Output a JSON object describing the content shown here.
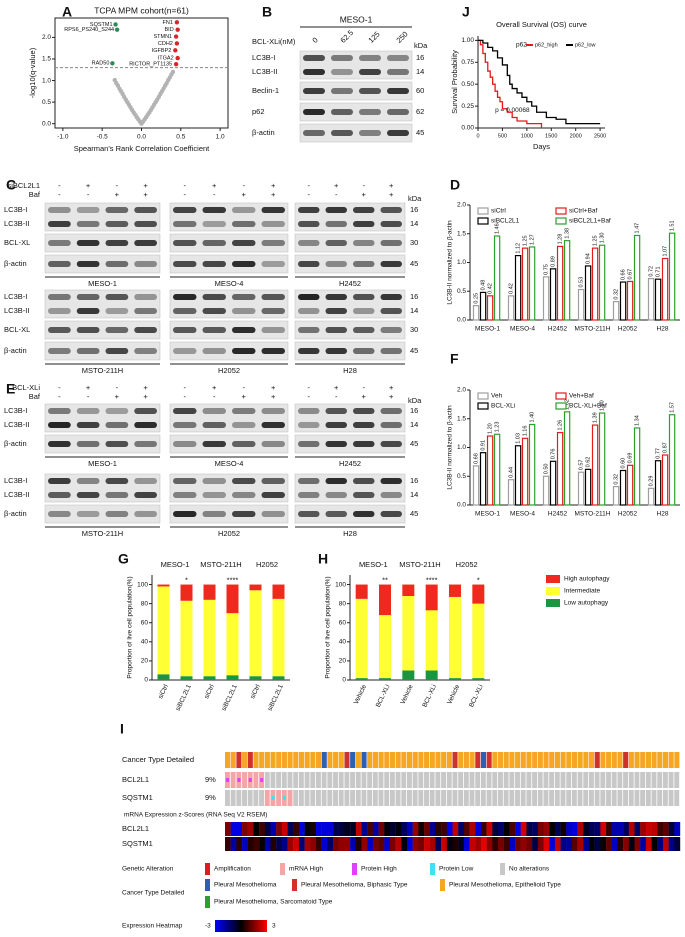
{
  "panel_letters": [
    "A",
    "B",
    "C",
    "D",
    "E",
    "F",
    "G",
    "H",
    "I",
    "J"
  ],
  "chart_data": [
    {
      "type": "scatter",
      "title": "TCPA MPM cohort(n=61)",
      "x_label": "Spearman's Rank Correlation Coefficient",
      "y_label": "-log10(q-value)",
      "xlim": [
        -1.1,
        1.1
      ],
      "ylim": [
        -0.1,
        2.45
      ],
      "xticks": [
        {
          "value": -1,
          "label": "-1.0"
        },
        {
          "value": -0.5,
          "label": "-0.5"
        },
        {
          "value": 0,
          "label": "0.0"
        },
        {
          "value": 0.5,
          "label": "0.5"
        },
        {
          "value": 1,
          "label": "1.0"
        }
      ],
      "yticks": [
        {
          "value": 0,
          "label": "0.0"
        },
        {
          "value": 0.5,
          "label": "0.5"
        },
        {
          "value": 1,
          "label": "1.0"
        },
        {
          "value": 1.5,
          "label": "1.5"
        },
        {
          "value": 2,
          "label": "2.0"
        }
      ],
      "threshold": 1.3,
      "series": [
        {
          "color": "#b3b3b3",
          "x": [
            -0.34,
            -0.32,
            -0.3,
            -0.28,
            -0.26,
            -0.24,
            -0.22,
            -0.2,
            -0.18,
            -0.16,
            -0.14,
            -0.12,
            -0.1,
            -0.08,
            -0.06,
            -0.04,
            -0.02,
            0,
            0.02,
            0.04,
            0.06,
            0.08,
            0.1,
            0.12,
            0.14,
            0.16,
            0.18,
            0.2,
            0.22,
            0.24,
            0.26,
            0.28,
            0.3,
            0.32,
            0.34,
            0.36,
            0.38,
            0.4
          ],
          "values": [
            1.01,
            0.94,
            0.88,
            0.81,
            0.75,
            0.69,
            0.62,
            0.56,
            0.5,
            0.44,
            0.38,
            0.32,
            0.26,
            0.21,
            0.15,
            0.1,
            0.05,
            0,
            0.05,
            0.1,
            0.15,
            0.21,
            0.26,
            0.32,
            0.38,
            0.44,
            0.5,
            0.56,
            0.62,
            0.69,
            0.75,
            0.81,
            0.88,
            0.94,
            1.01,
            1.07,
            1.14,
            1.2
          ]
        },
        {
          "color": "#2e8b57",
          "x": [
            -0.33,
            -0.31,
            -0.37
          ],
          "values": [
            2.3,
            2.18,
            1.4
          ],
          "labels": [
            "SQSTM1",
            "RPS6_PS240_S244",
            "RAD50"
          ]
        },
        {
          "color": "#d62728",
          "x": [
            0.45,
            0.46,
            0.44,
            0.45,
            0.43,
            0.46,
            0.44
          ],
          "values": [
            2.35,
            2.18,
            2.02,
            1.86,
            1.7,
            1.52,
            1.38
          ],
          "labels": [
            "FN1",
            "BID",
            "STMN1",
            "CDH2",
            "IGFBP2",
            "ITGA2",
            "RICTOR_PT1135"
          ]
        }
      ]
    },
    {
      "type": "line",
      "step": true,
      "title": "Overall Survival (OS) curve",
      "x_label": "Days",
      "y_label": "Survival Probability",
      "xlim": [
        0,
        2600
      ],
      "ylim": [
        0,
        1.05
      ],
      "xticks": [
        0,
        500,
        1000,
        1500,
        2000,
        2500
      ],
      "yticks": [
        {
          "value": 0,
          "label": "0.00"
        },
        {
          "value": 0.25,
          "label": "0.25"
        },
        {
          "value": 0.5,
          "label": "0.50"
        },
        {
          "value": 0.75,
          "label": "0.75"
        },
        {
          "value": 1,
          "label": "1.00"
        }
      ],
      "legend_title": "p62",
      "annotation": "p = 0.00068",
      "series": [
        {
          "name": "p62_high",
          "color": "#e41a1c",
          "x": [
            0,
            50,
            100,
            150,
            200,
            250,
            300,
            350,
            400,
            450,
            500,
            600,
            700,
            800,
            1000,
            1300
          ],
          "values": [
            1,
            0.95,
            0.85,
            0.75,
            0.65,
            0.58,
            0.5,
            0.42,
            0.35,
            0.3,
            0.22,
            0.18,
            0.12,
            0.08,
            0.05,
            0
          ]
        },
        {
          "name": "p62_low",
          "color": "#000000",
          "x": [
            0,
            100,
            200,
            300,
            400,
            500,
            600,
            650,
            700,
            800,
            900,
            1000,
            1100,
            1200,
            1400,
            1600,
            1800,
            2000,
            2200,
            2500
          ],
          "values": [
            1,
            0.97,
            0.92,
            0.88,
            0.8,
            0.72,
            0.6,
            0.5,
            0.45,
            0.4,
            0.35,
            0.3,
            0.25,
            0.18,
            0.12,
            0.1,
            0.05,
            0.05,
            0.05,
            0.05
          ]
        }
      ]
    },
    {
      "type": "bar",
      "y_label": "LC3B-II normalized to β-actin",
      "legend": "upper left",
      "categories": [
        "MESO-1",
        "MESO-4",
        "H2452",
        "MSTO-211H",
        "H2052",
        "H28"
      ],
      "ylim": [
        0,
        2
      ],
      "yticks": [
        {
          "value": 0,
          "label": "0.0"
        },
        {
          "value": 0.5,
          "label": "0.5"
        },
        {
          "value": 1,
          "label": "1.0"
        },
        {
          "value": 1.5,
          "label": "1.5"
        },
        {
          "value": 2,
          "label": "2.0"
        }
      ],
      "series": [
        {
          "name": "siCtrl",
          "color": "#9e9e9e",
          "values": [
            0.25,
            0.42,
            0.75,
            0.53,
            0.32,
            0.72
          ],
          "value_labels": [
            "0.25",
            "0.42",
            "0.75",
            "0.53",
            "0.32",
            "0.72"
          ]
        },
        {
          "name": "siBCL2L1",
          "color": "#000000",
          "values": [
            0.48,
            1.12,
            0.89,
            0.94,
            0.66,
            0.71
          ],
          "value_labels": [
            "0.48",
            "1.12",
            "0.89",
            "0.94",
            "0.66",
            "0.71"
          ]
        },
        {
          "name": "siCtrl+Baf",
          "color": "#e41a1c",
          "values": [
            0.42,
            1.25,
            1.28,
            1.25,
            0.67,
            1.07
          ],
          "value_labels": [
            "0.42",
            "1.25",
            "1.28",
            "1.25",
            "0.67",
            "1.07"
          ]
        },
        {
          "name": "siBCL2L1+Baf",
          "color": "#2ca02c",
          "values": [
            1.46,
            1.27,
            1.38,
            1.3,
            1.47,
            1.51
          ],
          "value_labels": [
            "1.46",
            "1.27",
            "1.38",
            "1.30",
            "1.47",
            "1.51"
          ]
        }
      ]
    },
    {
      "type": "bar",
      "y_label": "LC3B-II normalized to β-actin",
      "legend": "upper left",
      "categories": [
        "MESO-1",
        "MESO-4",
        "H2452",
        "MSTO-211H",
        "H2052",
        "H28"
      ],
      "ylim": [
        0,
        2
      ],
      "yticks": [
        {
          "value": 0,
          "label": "0.0"
        },
        {
          "value": 0.5,
          "label": "0.5"
        },
        {
          "value": 1,
          "label": "1.0"
        },
        {
          "value": 1.5,
          "label": "1.5"
        },
        {
          "value": 2,
          "label": "2.0"
        }
      ],
      "series": [
        {
          "name": "Veh",
          "color": "#9e9e9e",
          "values": [
            0.68,
            0.44,
            0.5,
            0.57,
            0.32,
            0.29
          ],
          "value_labels": [
            "0.68",
            "0.44",
            "0.50",
            "0.57",
            "0.32",
            "0.29"
          ]
        },
        {
          "name": "BCL-XLi",
          "color": "#000000",
          "values": [
            0.91,
            1.03,
            0.76,
            0.62,
            0.6,
            0.77
          ],
          "value_labels": [
            "0.91",
            "1.03",
            "0.76",
            "0.62",
            "0.60",
            "0.77"
          ]
        },
        {
          "name": "Veh+Baf",
          "color": "#e41a1c",
          "values": [
            1.2,
            1.16,
            1.26,
            1.39,
            0.69,
            0.87
          ],
          "value_labels": [
            "1.20",
            "1.16",
            "1.26",
            "1.39",
            "0.69",
            "0.87"
          ]
        },
        {
          "name": "BCL-XLi+Baf",
          "color": "#2ca02c",
          "values": [
            1.23,
            1.4,
            1.62,
            1.6,
            1.34,
            1.57
          ],
          "value_labels": [
            "1.23",
            "1.40",
            "1.62",
            "1.60",
            "1.34",
            "1.57"
          ]
        }
      ]
    },
    {
      "type": "stacked_bar",
      "y_label": "Proportion of live cell population(%)",
      "groups": [
        "MESO-1",
        "MSTO-211H",
        "H2052"
      ],
      "categories": [
        "siCtrl",
        "siBCL2L1",
        "siCtrl",
        "siBCL2L1",
        "siCtrl",
        "siBCL2L1"
      ],
      "ylim": [
        0,
        110
      ],
      "yticks": [
        0,
        20,
        40,
        60,
        80,
        100
      ],
      "significance": [
        null,
        "*",
        null,
        "****",
        null,
        null
      ],
      "series": [
        {
          "color": "#ee2a1f",
          "values": [
            2,
            17,
            16,
            30,
            6,
            15
          ]
        },
        {
          "color": "#ffff33",
          "values": [
            92,
            79,
            80,
            65,
            90,
            81
          ]
        },
        {
          "color": "#1a9641",
          "values": [
            6,
            4,
            4,
            5,
            4,
            4
          ]
        }
      ]
    },
    {
      "type": "stacked_bar",
      "y_label": "Proportion of live cell population(%)",
      "legend": "right",
      "groups": [
        "MESO-1",
        "MSTO-211H",
        "H2052"
      ],
      "categories": [
        "Vehicle",
        "BCL-XLi",
        "Vehicle",
        "BCL-XLi",
        "Vehicle",
        "BCL-XLi"
      ],
      "ylim": [
        0,
        110
      ],
      "yticks": [
        0,
        20,
        40,
        60,
        80,
        100
      ],
      "significance": [
        null,
        "**",
        null,
        "****",
        null,
        "*"
      ],
      "series": [
        {
          "name": "High autophagy",
          "color": "#ee2a1f",
          "values": [
            15,
            32,
            12,
            27,
            13,
            20
          ]
        },
        {
          "name": "Intermediate",
          "color": "#ffff33",
          "values": [
            83,
            66,
            78,
            63,
            85,
            78
          ]
        },
        {
          "name": "Low autophagy",
          "color": "#1a9641",
          "values": [
            2,
            2,
            10,
            10,
            2,
            2
          ]
        }
      ]
    }
  ],
  "blot_b": {
    "cell_line": "MESO-1",
    "treatment": "BCL-XLi(nM)",
    "doses": [
      "0",
      "62.5",
      "125",
      "250"
    ],
    "kda_header": "kDa",
    "rows": [
      {
        "labels": [
          "LC3B-I",
          "LC3B-II"
        ],
        "kda": [
          "16",
          "14"
        ]
      },
      {
        "labels": [
          "Beclin-1"
        ],
        "kda": [
          "60"
        ]
      },
      {
        "labels": [
          "p62"
        ],
        "kda": [
          "62"
        ]
      },
      {
        "labels": [
          "β-actin"
        ],
        "kda": [
          "45"
        ]
      }
    ]
  },
  "blot_c": {
    "treatments": [
      {
        "label": "siBCL2L1",
        "signs": [
          "-",
          "+",
          "-",
          "+"
        ]
      },
      {
        "label": "Baf",
        "signs": [
          "-",
          "-",
          "+",
          "+"
        ]
      }
    ],
    "kda_header": "kDa",
    "groups": [
      {
        "cells": [
          "MESO-1",
          "MESO-4",
          "H2452"
        ],
        "rows": [
          {
            "labels": [
              "LC3B-I",
              "LC3B-II"
            ],
            "kda": [
              "16",
              "14"
            ]
          },
          {
            "labels": [
              "BCL-XL"
            ],
            "kda": [
              "30"
            ]
          },
          {
            "labels": [
              "β-actin"
            ],
            "kda": [
              "45"
            ]
          }
        ]
      },
      {
        "cells": [
          "MSTO-211H",
          "H2052",
          "H28"
        ],
        "rows": [
          {
            "labels": [
              "LC3B-I",
              "LC3B-II"
            ],
            "kda": [
              "16",
              "14"
            ]
          },
          {
            "labels": [
              "BCL-XL"
            ],
            "kda": [
              "30"
            ]
          },
          {
            "labels": [
              "β-actin"
            ],
            "kda": [
              "45"
            ]
          }
        ]
      }
    ]
  },
  "blot_e": {
    "treatments": [
      {
        "label": "BCL-XLi",
        "signs": [
          "-",
          "+",
          "-",
          "+"
        ]
      },
      {
        "label": "Baf",
        "signs": [
          "-",
          "-",
          "+",
          "+"
        ]
      }
    ],
    "kda_header": "kDa",
    "groups": [
      {
        "cells": [
          "MESO-1",
          "MESO-4",
          "H2452"
        ],
        "rows": [
          {
            "labels": [
              "LC3B-I",
              "LC3B-II"
            ],
            "kda": [
              "16",
              "14"
            ]
          },
          {
            "labels": [
              "β-actin"
            ],
            "kda": [
              "45"
            ]
          }
        ]
      },
      {
        "cells": [
          "MSTO-211H",
          "H2052",
          "H28"
        ],
        "rows": [
          {
            "labels": [
              "LC3B-I",
              "LC3B-II"
            ],
            "kda": [
              "16",
              "14"
            ]
          },
          {
            "labels": [
              "β-actin"
            ],
            "kda": [
              "45"
            ]
          }
        ]
      }
    ]
  },
  "oncoprint": {
    "track_label": "Cancer Type Detailed",
    "genes": [
      {
        "name": "BCL2L1",
        "percent": "9%"
      },
      {
        "name": "SQSTM1",
        "percent": "9%"
      }
    ],
    "expression_title": "mRNA Expression z-Scores (RNA Seq V2 RSEM)",
    "expression_genes": [
      "BCL2L1",
      "SQSTM1"
    ],
    "alteration_legend": {
      "title": "Genetic Alteration",
      "items": [
        "Amplification",
        "mRNA High",
        "Protein High",
        "Protein Low",
        "No alterations"
      ]
    },
    "type_legend": {
      "title": "Cancer Type Detailed",
      "items": [
        "Pleural Mesothelioma",
        "Pleural Mesothelioma, Biphasic Type",
        "Pleural Mesothelioma, Epithelioid Type",
        "Pleural Mesothelioma, Sarcomatoid Type"
      ]
    },
    "heatmap_legend": {
      "title": "Expression Heatmap",
      "min_label": "-3",
      "max_label": "3"
    }
  }
}
